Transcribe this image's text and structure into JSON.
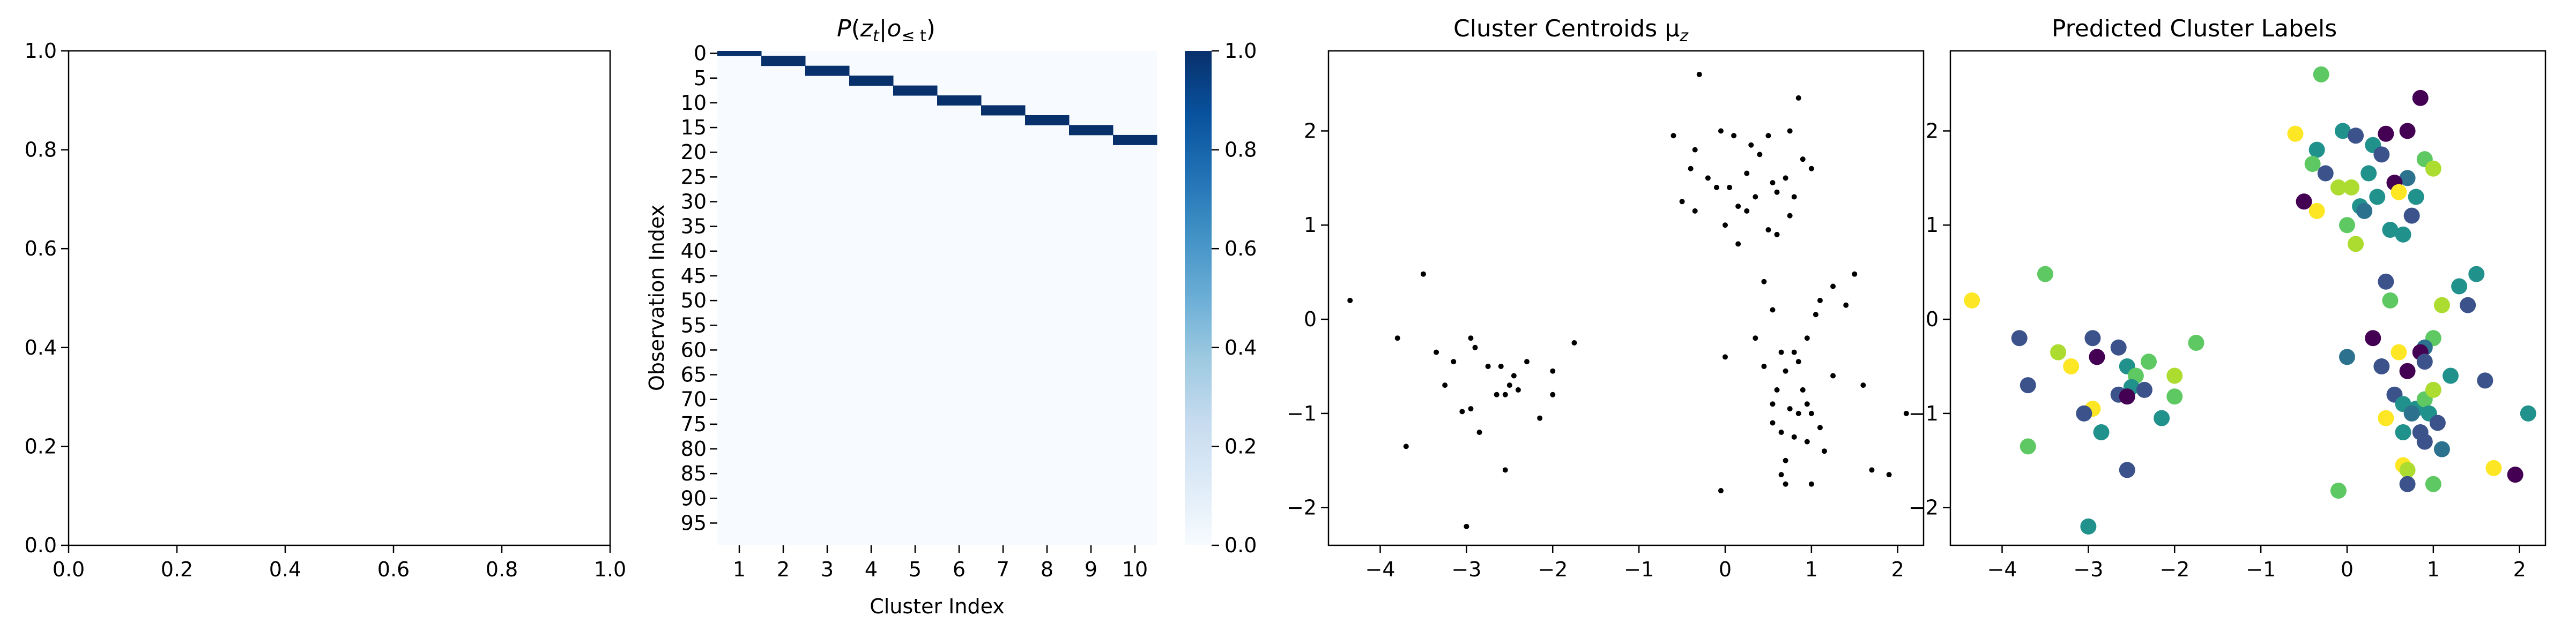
{
  "chart_data": [
    {
      "type": "scatter",
      "title": "",
      "xlabel": "",
      "ylabel": "",
      "xlim": [
        0,
        1
      ],
      "ylim": [
        0,
        1
      ],
      "xticks": [
        "0.0",
        "0.2",
        "0.4",
        "0.6",
        "0.8",
        "1.0"
      ],
      "yticks": [
        "0.0",
        "0.2",
        "0.4",
        "0.6",
        "0.8",
        "1.0"
      ],
      "points": []
    },
    {
      "type": "heatmap",
      "title_parts": {
        "p": "P",
        "open": "(",
        "z": "z",
        "z_sub": "t",
        "bar": "|",
        "o": "o",
        "o_sub": "≤ t",
        "close": ")"
      },
      "xlabel": "Cluster Index",
      "ylabel": "Observation Index",
      "x_categories": [
        "1",
        "2",
        "3",
        "4",
        "5",
        "6",
        "7",
        "8",
        "9",
        "10"
      ],
      "y_tick_labels": [
        "0",
        "5",
        "10",
        "15",
        "20",
        "25",
        "30",
        "35",
        "40",
        "45",
        "50",
        "55",
        "60",
        "65",
        "70",
        "75",
        "80",
        "85",
        "90",
        "95"
      ],
      "n_rows": 100,
      "hot_cells": [
        [
          0,
          0
        ],
        [
          1,
          1
        ],
        [
          2,
          1
        ],
        [
          3,
          2
        ],
        [
          4,
          2
        ],
        [
          5,
          3
        ],
        [
          6,
          3
        ],
        [
          7,
          4
        ],
        [
          8,
          4
        ],
        [
          9,
          5
        ],
        [
          10,
          5
        ],
        [
          11,
          6
        ],
        [
          12,
          6
        ],
        [
          13,
          7
        ],
        [
          14,
          7
        ],
        [
          15,
          8
        ],
        [
          16,
          8
        ],
        [
          17,
          9
        ],
        [
          18,
          9
        ]
      ],
      "value_range": [
        0,
        1
      ],
      "colorbar_ticks": [
        "0.0",
        "0.2",
        "0.4",
        "0.6",
        "0.8",
        "1.0"
      ],
      "colormap": [
        "#f7fbff",
        "#deebf7",
        "#c6dbef",
        "#9ecae1",
        "#6baed6",
        "#4292c6",
        "#2171b5",
        "#08519c",
        "#08306b"
      ]
    },
    {
      "type": "scatter",
      "title": "Cluster Centroids μ",
      "title_sub": "z",
      "xlim": [
        -4.6,
        2.3
      ],
      "ylim": [
        -2.4,
        2.85
      ],
      "xticks": [
        -4,
        -3,
        -2,
        -1,
        0,
        1,
        2
      ],
      "yticks": [
        -2,
        -1,
        0,
        1,
        2
      ],
      "xtick_labels": [
        "−4",
        "−3",
        "−2",
        "−1",
        "0",
        "1",
        "2"
      ],
      "ytick_labels": [
        "−2",
        "−1",
        "0",
        "1",
        "2"
      ],
      "marker_color": "#000000",
      "points": [
        [
          -0.3,
          2.6
        ],
        [
          0.85,
          2.35
        ],
        [
          -0.05,
          2.0
        ],
        [
          0.1,
          1.95
        ],
        [
          0.5,
          1.95
        ],
        [
          0.75,
          2.0
        ],
        [
          -0.6,
          1.95
        ],
        [
          0.3,
          1.85
        ],
        [
          -0.35,
          1.8
        ],
        [
          0.4,
          1.75
        ],
        [
          -0.4,
          1.6
        ],
        [
          0.7,
          1.5
        ],
        [
          0.9,
          1.7
        ],
        [
          1.0,
          1.6
        ],
        [
          -0.2,
          1.5
        ],
        [
          0.25,
          1.55
        ],
        [
          0.55,
          1.45
        ],
        [
          0.6,
          1.35
        ],
        [
          -0.1,
          1.4
        ],
        [
          0.05,
          1.4
        ],
        [
          0.35,
          1.3
        ],
        [
          0.8,
          1.3
        ],
        [
          -0.5,
          1.25
        ],
        [
          0.15,
          1.2
        ],
        [
          -0.35,
          1.15
        ],
        [
          0.25,
          1.15
        ],
        [
          0.75,
          1.1
        ],
        [
          0.0,
          1.0
        ],
        [
          0.5,
          0.95
        ],
        [
          0.6,
          0.9
        ],
        [
          0.15,
          0.8
        ],
        [
          -4.35,
          0.2
        ],
        [
          -3.5,
          0.48
        ],
        [
          -3.8,
          -0.2
        ],
        [
          -3.35,
          -0.35
        ],
        [
          -3.15,
          -0.45
        ],
        [
          -3.25,
          -0.7
        ],
        [
          -2.95,
          -0.2
        ],
        [
          -2.9,
          -0.3
        ],
        [
          -2.75,
          -0.5
        ],
        [
          -2.6,
          -0.5
        ],
        [
          -2.45,
          -0.6
        ],
        [
          -2.5,
          -0.7
        ],
        [
          -2.4,
          -0.75
        ],
        [
          -2.65,
          -0.8
        ],
        [
          -2.55,
          -0.8
        ],
        [
          -2.3,
          -0.45
        ],
        [
          -2.0,
          -0.55
        ],
        [
          -1.75,
          -0.25
        ],
        [
          -2.0,
          -0.8
        ],
        [
          -2.95,
          -0.95
        ],
        [
          -3.05,
          -0.98
        ],
        [
          -3.7,
          -1.35
        ],
        [
          -2.85,
          -1.2
        ],
        [
          -2.15,
          -1.05
        ],
        [
          -2.55,
          -1.6
        ],
        [
          -3.0,
          -2.2
        ],
        [
          0.45,
          0.4
        ],
        [
          1.1,
          0.2
        ],
        [
          1.25,
          0.35
        ],
        [
          1.5,
          0.48
        ],
        [
          1.4,
          0.15
        ],
        [
          0.55,
          0.1
        ],
        [
          1.05,
          0.05
        ],
        [
          0.35,
          -0.2
        ],
        [
          0.95,
          -0.2
        ],
        [
          0.0,
          -0.4
        ],
        [
          0.65,
          -0.35
        ],
        [
          0.8,
          -0.35
        ],
        [
          0.85,
          -0.45
        ],
        [
          0.45,
          -0.5
        ],
        [
          0.7,
          -0.55
        ],
        [
          0.6,
          -0.75
        ],
        [
          0.9,
          -0.75
        ],
        [
          1.25,
          -0.6
        ],
        [
          1.6,
          -0.7
        ],
        [
          0.95,
          -0.9
        ],
        [
          0.75,
          -0.95
        ],
        [
          0.55,
          -0.9
        ],
        [
          0.85,
          -1.0
        ],
        [
          1.0,
          -1.0
        ],
        [
          1.1,
          -1.15
        ],
        [
          0.55,
          -1.1
        ],
        [
          0.65,
          -1.2
        ],
        [
          0.8,
          -1.25
        ],
        [
          0.95,
          -1.3
        ],
        [
          1.15,
          -1.4
        ],
        [
          0.7,
          -1.5
        ],
        [
          0.65,
          -1.65
        ],
        [
          0.7,
          -1.75
        ],
        [
          1.0,
          -1.75
        ],
        [
          1.7,
          -1.6
        ],
        [
          1.9,
          -1.65
        ],
        [
          2.1,
          -1.0
        ],
        [
          -0.05,
          -1.82
        ]
      ]
    },
    {
      "type": "scatter",
      "title": "Predicted Cluster Labels",
      "xlim": [
        -4.6,
        2.3
      ],
      "ylim": [
        -2.4,
        2.85
      ],
      "xticks": [
        -4,
        -3,
        -2,
        -1,
        0,
        1,
        2
      ],
      "yticks": [
        -2,
        -1,
        0,
        1,
        2
      ],
      "xtick_labels": [
        "−4",
        "−3",
        "−2",
        "−1",
        "0",
        "1",
        "2"
      ],
      "ytick_labels": [
        "−2",
        "−1",
        "0",
        "1",
        "2"
      ],
      "points": [
        {
          "x": -0.3,
          "y": 2.6,
          "c": "#5ec962"
        },
        {
          "x": 0.85,
          "y": 2.35,
          "c": "#440154"
        },
        {
          "x": -0.05,
          "y": 2.0,
          "c": "#21918c"
        },
        {
          "x": 0.1,
          "y": 1.95,
          "c": "#3b528b"
        },
        {
          "x": 0.45,
          "y": 1.97,
          "c": "#440154"
        },
        {
          "x": 0.7,
          "y": 2.0,
          "c": "#440154"
        },
        {
          "x": -0.6,
          "y": 1.97,
          "c": "#fde725"
        },
        {
          "x": 0.3,
          "y": 1.85,
          "c": "#21918c"
        },
        {
          "x": -0.35,
          "y": 1.8,
          "c": "#21918c"
        },
        {
          "x": 0.4,
          "y": 1.75,
          "c": "#3b528b"
        },
        {
          "x": -0.4,
          "y": 1.65,
          "c": "#5ec962"
        },
        {
          "x": 0.7,
          "y": 1.5,
          "c": "#2c728e"
        },
        {
          "x": 0.9,
          "y": 1.7,
          "c": "#5ec962"
        },
        {
          "x": 1.0,
          "y": 1.6,
          "c": "#addc30"
        },
        {
          "x": -0.25,
          "y": 1.55,
          "c": "#3b528b"
        },
        {
          "x": 0.25,
          "y": 1.55,
          "c": "#21918c"
        },
        {
          "x": 0.55,
          "y": 1.45,
          "c": "#440154"
        },
        {
          "x": 0.6,
          "y": 1.35,
          "c": "#fde725"
        },
        {
          "x": -0.1,
          "y": 1.4,
          "c": "#addc30"
        },
        {
          "x": 0.05,
          "y": 1.4,
          "c": "#addc30"
        },
        {
          "x": 0.35,
          "y": 1.3,
          "c": "#21918c"
        },
        {
          "x": 0.8,
          "y": 1.3,
          "c": "#21918c"
        },
        {
          "x": -0.5,
          "y": 1.25,
          "c": "#440154"
        },
        {
          "x": 0.15,
          "y": 1.2,
          "c": "#21918c"
        },
        {
          "x": -0.35,
          "y": 1.15,
          "c": "#fde725"
        },
        {
          "x": 0.2,
          "y": 1.15,
          "c": "#2c728e"
        },
        {
          "x": 0.75,
          "y": 1.1,
          "c": "#3b528b"
        },
        {
          "x": 0.0,
          "y": 1.0,
          "c": "#5ec962"
        },
        {
          "x": 0.5,
          "y": 0.95,
          "c": "#21918c"
        },
        {
          "x": 0.65,
          "y": 0.9,
          "c": "#21918c"
        },
        {
          "x": 0.1,
          "y": 0.8,
          "c": "#addc30"
        },
        {
          "x": -4.35,
          "y": 0.2,
          "c": "#fde725"
        },
        {
          "x": -3.5,
          "y": 0.48,
          "c": "#5ec962"
        },
        {
          "x": -3.8,
          "y": -0.2,
          "c": "#3b528b"
        },
        {
          "x": -3.35,
          "y": -0.35,
          "c": "#addc30"
        },
        {
          "x": -3.2,
          "y": -0.5,
          "c": "#fde725"
        },
        {
          "x": -3.7,
          "y": -0.7,
          "c": "#3b528b"
        },
        {
          "x": -2.95,
          "y": -0.2,
          "c": "#3b528b"
        },
        {
          "x": -2.9,
          "y": -0.4,
          "c": "#440154"
        },
        {
          "x": -2.65,
          "y": -0.3,
          "c": "#3b528b"
        },
        {
          "x": -2.55,
          "y": -0.5,
          "c": "#21918c"
        },
        {
          "x": -2.45,
          "y": -0.6,
          "c": "#5ec962"
        },
        {
          "x": -2.5,
          "y": -0.72,
          "c": "#21918c"
        },
        {
          "x": -2.35,
          "y": -0.75,
          "c": "#3b528b"
        },
        {
          "x": -2.65,
          "y": -0.8,
          "c": "#3b528b"
        },
        {
          "x": -2.55,
          "y": -0.82,
          "c": "#440154"
        },
        {
          "x": -2.3,
          "y": -0.45,
          "c": "#5ec962"
        },
        {
          "x": -2.0,
          "y": -0.6,
          "c": "#addc30"
        },
        {
          "x": -1.75,
          "y": -0.25,
          "c": "#5ec962"
        },
        {
          "x": -2.0,
          "y": -0.82,
          "c": "#5ec962"
        },
        {
          "x": -2.95,
          "y": -0.95,
          "c": "#fde725"
        },
        {
          "x": -3.05,
          "y": -1.0,
          "c": "#3b528b"
        },
        {
          "x": -3.7,
          "y": -1.35,
          "c": "#5ec962"
        },
        {
          "x": -2.85,
          "y": -1.2,
          "c": "#21918c"
        },
        {
          "x": -2.15,
          "y": -1.05,
          "c": "#21918c"
        },
        {
          "x": -2.55,
          "y": -1.6,
          "c": "#3b528b"
        },
        {
          "x": -3.0,
          "y": -2.2,
          "c": "#21918c"
        },
        {
          "x": 0.45,
          "y": 0.4,
          "c": "#3b528b"
        },
        {
          "x": 1.1,
          "y": 0.15,
          "c": "#addc30"
        },
        {
          "x": 1.3,
          "y": 0.35,
          "c": "#21918c"
        },
        {
          "x": 1.5,
          "y": 0.48,
          "c": "#21918c"
        },
        {
          "x": 1.4,
          "y": 0.15,
          "c": "#3b528b"
        },
        {
          "x": 0.5,
          "y": 0.2,
          "c": "#5ec962"
        },
        {
          "x": 1.0,
          "y": -0.2,
          "c": "#5ec962"
        },
        {
          "x": 0.3,
          "y": -0.2,
          "c": "#440154"
        },
        {
          "x": 0.9,
          "y": -0.3,
          "c": "#2c728e"
        },
        {
          "x": 0.0,
          "y": -0.4,
          "c": "#2c728e"
        },
        {
          "x": 0.6,
          "y": -0.35,
          "c": "#fde725"
        },
        {
          "x": 0.85,
          "y": -0.35,
          "c": "#440154"
        },
        {
          "x": 0.9,
          "y": -0.45,
          "c": "#3b528b"
        },
        {
          "x": 0.4,
          "y": -0.5,
          "c": "#3b528b"
        },
        {
          "x": 0.7,
          "y": -0.55,
          "c": "#440154"
        },
        {
          "x": 1.2,
          "y": -0.6,
          "c": "#21918c"
        },
        {
          "x": 1.6,
          "y": -0.65,
          "c": "#3b528b"
        },
        {
          "x": 0.55,
          "y": -0.8,
          "c": "#3b528b"
        },
        {
          "x": 0.65,
          "y": -0.9,
          "c": "#21918c"
        },
        {
          "x": 0.8,
          "y": -0.95,
          "c": "#21918c"
        },
        {
          "x": 0.9,
          "y": -0.85,
          "c": "#5ec962"
        },
        {
          "x": 0.75,
          "y": -1.0,
          "c": "#2c728e"
        },
        {
          "x": 0.95,
          "y": -1.0,
          "c": "#21918c"
        },
        {
          "x": 1.0,
          "y": -0.75,
          "c": "#addc30"
        },
        {
          "x": 1.05,
          "y": -1.1,
          "c": "#3b528b"
        },
        {
          "x": 0.45,
          "y": -1.05,
          "c": "#fde725"
        },
        {
          "x": 0.65,
          "y": -1.2,
          "c": "#21918c"
        },
        {
          "x": 0.85,
          "y": -1.2,
          "c": "#3b528b"
        },
        {
          "x": 0.9,
          "y": -1.3,
          "c": "#3b528b"
        },
        {
          "x": 1.1,
          "y": -1.38,
          "c": "#2c728e"
        },
        {
          "x": 0.65,
          "y": -1.55,
          "c": "#fde725"
        },
        {
          "x": 0.7,
          "y": -1.6,
          "c": "#addc30"
        },
        {
          "x": 0.7,
          "y": -1.75,
          "c": "#3b528b"
        },
        {
          "x": 1.0,
          "y": -1.75,
          "c": "#5ec962"
        },
        {
          "x": 1.7,
          "y": -1.58,
          "c": "#fde725"
        },
        {
          "x": 1.95,
          "y": -1.65,
          "c": "#440154"
        },
        {
          "x": 2.1,
          "y": -1.0,
          "c": "#21918c"
        },
        {
          "x": -0.1,
          "y": -1.82,
          "c": "#5ec962"
        }
      ]
    }
  ]
}
